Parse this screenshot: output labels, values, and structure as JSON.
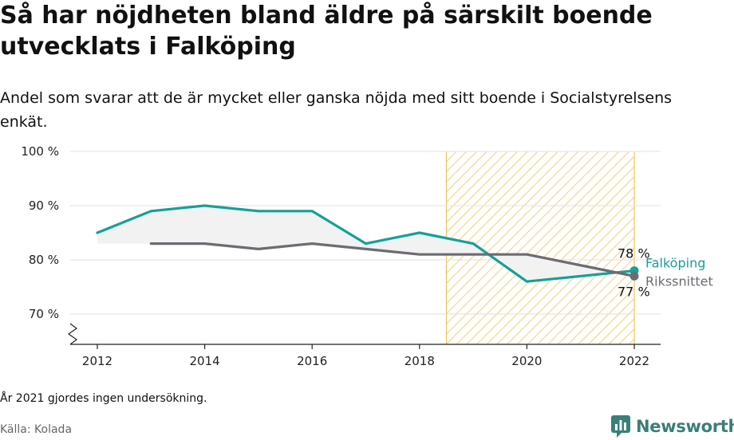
{
  "title": "Så har nöjdheten bland äldre på särskilt boende utvecklats i Falköping",
  "subtitle": "Andel som svarar att de är mycket eller ganska nöjda med sitt boende i Socialstyrelsens enkät.",
  "note": "År 2021 gjordes ingen undersökning.",
  "source": "Källa: Kolada",
  "brand": "Newsworthy",
  "colors": {
    "falkoping": "#16a096",
    "riket": "#6d6b73",
    "highlight": "#f5c35a",
    "fill_between": "#f2f2f2"
  },
  "chart_data": {
    "type": "line",
    "x_ticks": [
      2012,
      2014,
      2016,
      2018,
      2020,
      2022
    ],
    "y_ticks": [
      70,
      80,
      90,
      100
    ],
    "y_tick_labels": [
      "70 %",
      "80 %",
      "90 %",
      "100 %"
    ],
    "xlim": [
      2012,
      2022
    ],
    "ylim": [
      70,
      100
    ],
    "y_axis_break": true,
    "grid": "horizontal",
    "highlight_range": [
      2018.5,
      2022
    ],
    "series": [
      {
        "name": "Falköping",
        "x": [
          2012,
          2013,
          2014,
          2015,
          2016,
          2017,
          2018,
          2019,
          2020,
          2022
        ],
        "values": [
          85,
          89,
          90,
          89,
          89,
          83,
          85,
          83,
          76,
          78
        ],
        "end_label": "78 %"
      },
      {
        "name": "Rikssnittet",
        "x": [
          2013,
          2014,
          2015,
          2016,
          2017,
          2018,
          2019,
          2020,
          2022
        ],
        "values": [
          83,
          83,
          82,
          83,
          82,
          81,
          81,
          81,
          77
        ],
        "end_label": "77 %"
      }
    ]
  }
}
